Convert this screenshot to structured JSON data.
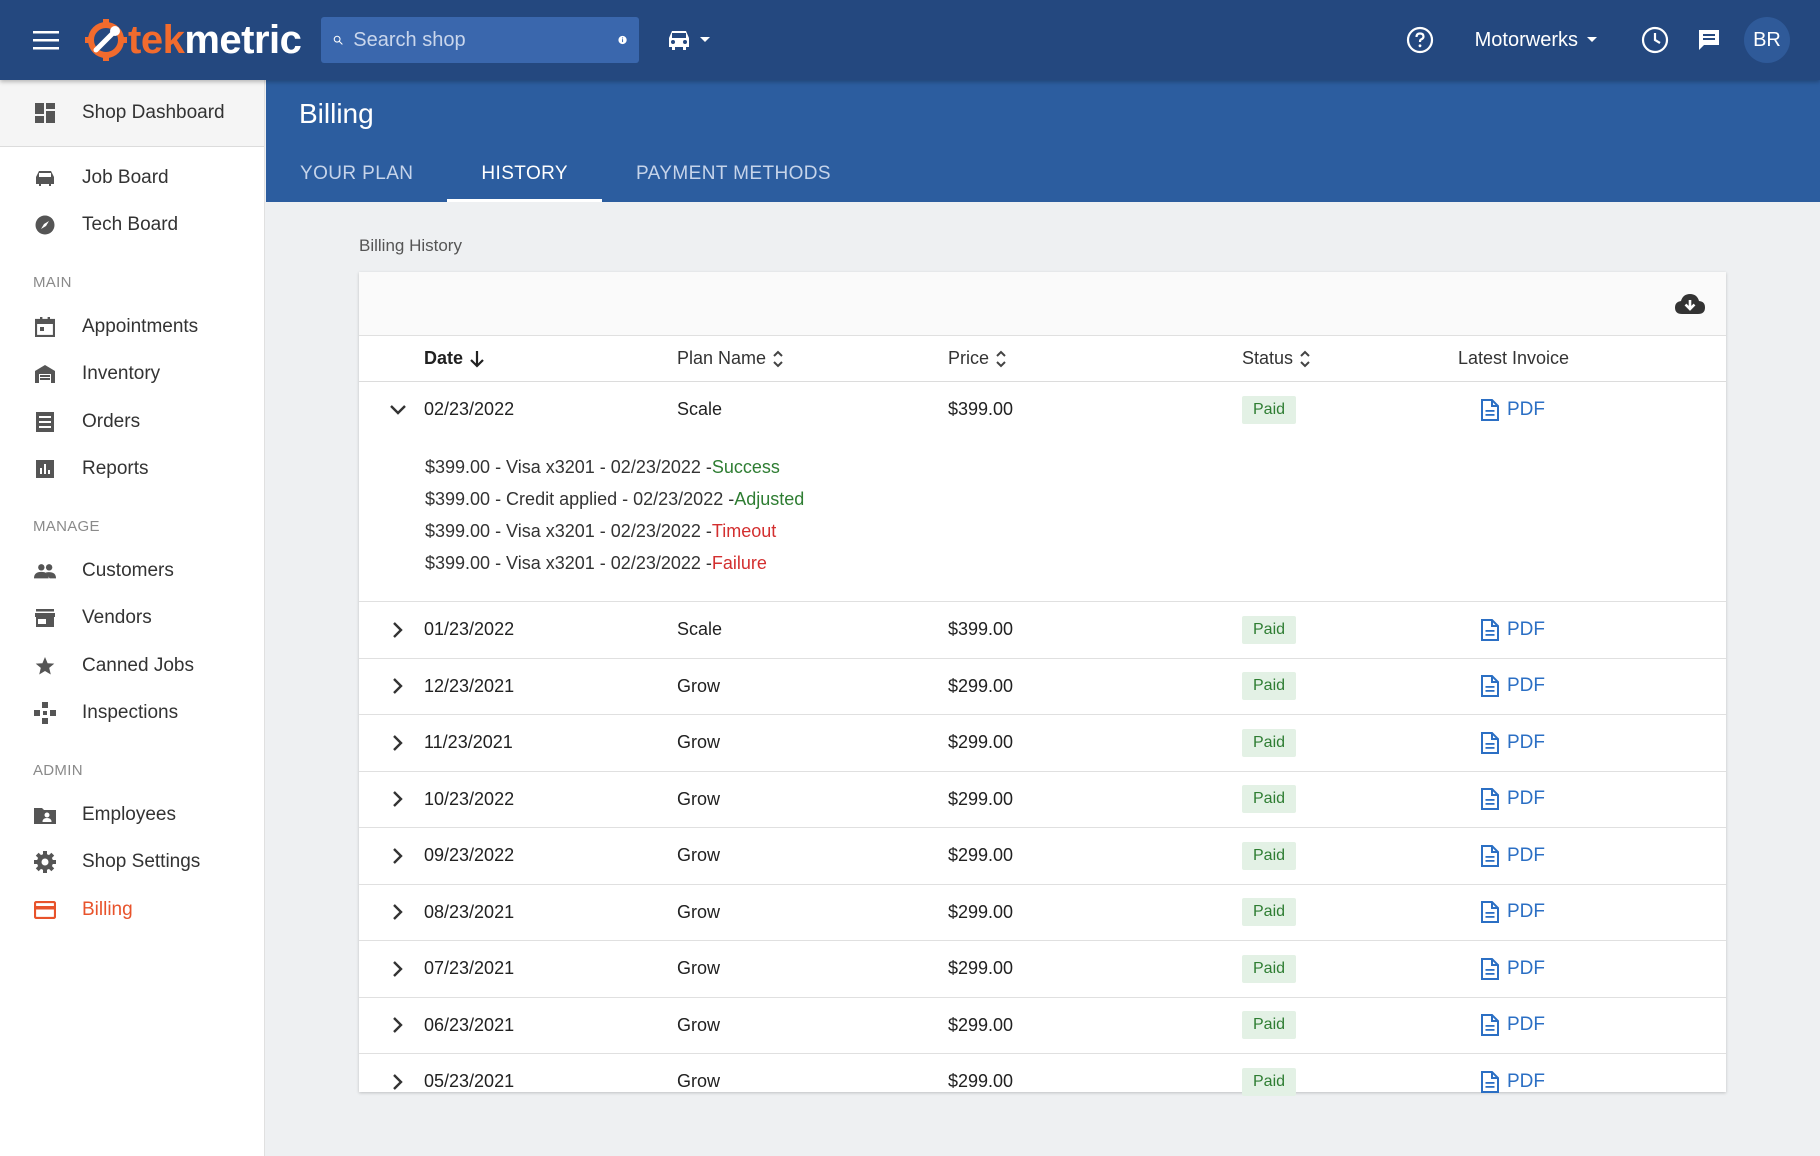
{
  "brand": {
    "tek": "tek",
    "metric": "metric"
  },
  "search": {
    "placeholder": "Search shop"
  },
  "topbar": {
    "shop_name": "Motorwerks",
    "avatar_initials": "BR"
  },
  "sidebar": {
    "dashboard": "Shop Dashboard",
    "top_items": [
      "Job Board",
      "Tech Board"
    ],
    "sections": [
      {
        "title": "MAIN",
        "items": [
          "Appointments",
          "Inventory",
          "Orders",
          "Reports"
        ]
      },
      {
        "title": "MANAGE",
        "items": [
          "Customers",
          "Vendors",
          "Canned Jobs",
          "Inspections"
        ]
      },
      {
        "title": "ADMIN",
        "items": [
          "Employees",
          "Shop Settings",
          "Billing"
        ]
      }
    ],
    "active_item": "Billing"
  },
  "page": {
    "title": "Billing",
    "tabs": [
      "YOUR PLAN",
      "HISTORY",
      "PAYMENT METHODS"
    ],
    "active_tab": "HISTORY",
    "section_label": "Billing History"
  },
  "table": {
    "headers": {
      "date": "Date",
      "plan": "Plan Name",
      "price": "Price",
      "status": "Status",
      "invoice": "Latest Invoice"
    },
    "rows": [
      {
        "date": "02/23/2022",
        "plan": "Scale",
        "price": "$399.00",
        "status": "Paid",
        "invoice": "PDF",
        "expanded": true,
        "details": [
          {
            "text": "$399.00 - Visa x3201 - 02/23/2022 - ",
            "result": "Success",
            "ok": true
          },
          {
            "text": "$399.00 - Credit applied - 02/23/2022 - ",
            "result": "Adjusted",
            "ok": true
          },
          {
            "text": "$399.00 - Visa x3201 - 02/23/2022 - ",
            "result": "Timeout",
            "ok": false
          },
          {
            "text": "$399.00 - Visa x3201 - 02/23/2022 - ",
            "result": "Failure",
            "ok": false
          }
        ]
      },
      {
        "date": "01/23/2022",
        "plan": "Scale",
        "price": "$399.00",
        "status": "Paid",
        "invoice": "PDF"
      },
      {
        "date": "12/23/2021",
        "plan": "Grow",
        "price": "$299.00",
        "status": "Paid",
        "invoice": "PDF"
      },
      {
        "date": "11/23/2021",
        "plan": "Grow",
        "price": "$299.00",
        "status": "Paid",
        "invoice": "PDF"
      },
      {
        "date": "10/23/2022",
        "plan": "Grow",
        "price": "$299.00",
        "status": "Paid",
        "invoice": "PDF"
      },
      {
        "date": "09/23/2022",
        "plan": "Grow",
        "price": "$299.00",
        "status": "Paid",
        "invoice": "PDF"
      },
      {
        "date": "08/23/2021",
        "plan": "Grow",
        "price": "$299.00",
        "status": "Paid",
        "invoice": "PDF"
      },
      {
        "date": "07/23/2021",
        "plan": "Grow",
        "price": "$299.00",
        "status": "Paid",
        "invoice": "PDF"
      },
      {
        "date": "06/23/2021",
        "plan": "Grow",
        "price": "$299.00",
        "status": "Paid",
        "invoice": "PDF"
      },
      {
        "date": "05/23/2021",
        "plan": "Grow",
        "price": "$299.00",
        "status": "Paid",
        "invoice": "PDF"
      }
    ]
  },
  "colors": {
    "topbar": "#24487f",
    "header": "#2c5d9f",
    "brand_orange": "#f26b2d",
    "link": "#2b6fc4",
    "success": "#2e7d32",
    "error": "#d32f2f"
  }
}
